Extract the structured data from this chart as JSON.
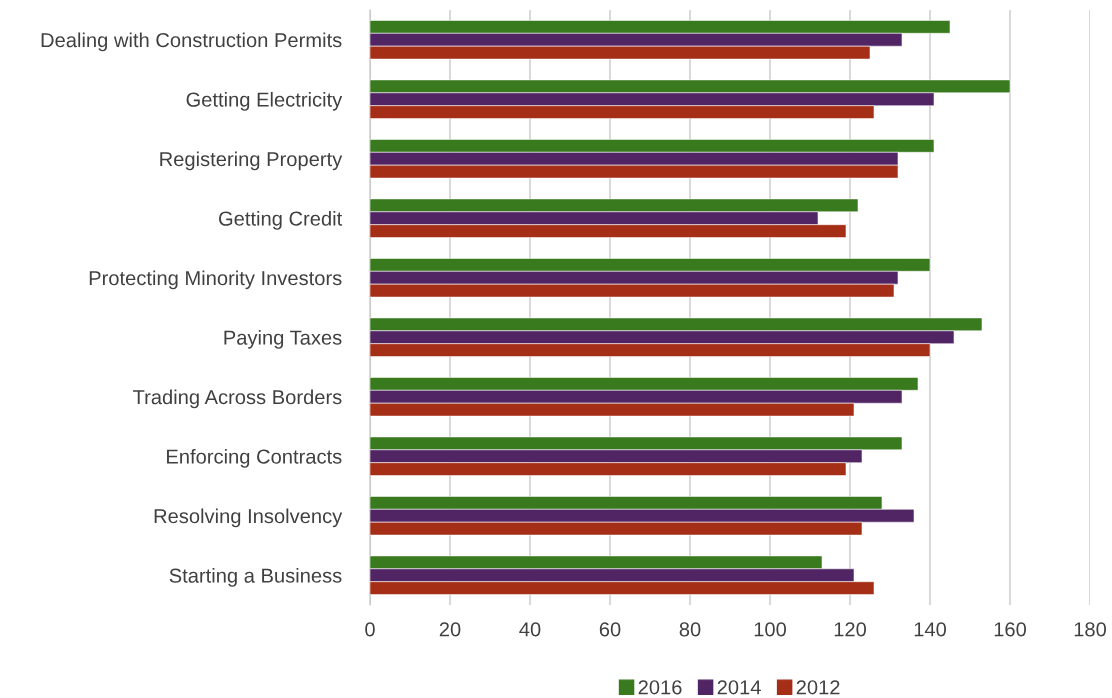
{
  "chart_data": {
    "type": "bar",
    "orientation": "horizontal",
    "categories": [
      "Dealing with Construction Permits",
      "Getting Electricity",
      "Registering Property",
      "Getting Credit",
      "Protecting Minority Investors",
      "Paying Taxes",
      "Trading Across Borders",
      "Enforcing Contracts",
      "Resolving Insolvency",
      "Starting a Business"
    ],
    "series": [
      {
        "name": "2016",
        "color": "#3a7a1f",
        "values": [
          145,
          160,
          141,
          122,
          140,
          153,
          137,
          133,
          128,
          113
        ]
      },
      {
        "name": "2014",
        "color": "#512463",
        "values": [
          133,
          141,
          132,
          112,
          132,
          146,
          133,
          123,
          136,
          121
        ]
      },
      {
        "name": "2012",
        "color": "#a52e17",
        "values": [
          125,
          126,
          132,
          119,
          131,
          140,
          121,
          119,
          123,
          126
        ]
      }
    ],
    "xlim": [
      0,
      180
    ],
    "xticks": [
      0,
      20,
      40,
      60,
      80,
      100,
      120,
      140,
      160,
      180
    ],
    "grid": "x",
    "legend": "bottom"
  }
}
